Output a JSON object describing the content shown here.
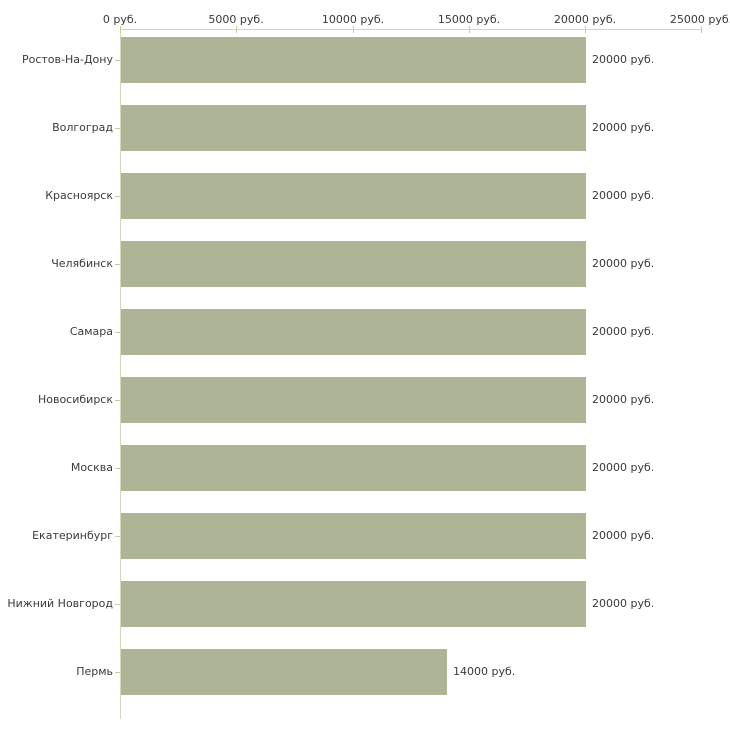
{
  "chart_data": {
    "type": "bar",
    "orientation": "horizontal",
    "title": "",
    "xlabel": "",
    "ylabel": "",
    "unit": "руб.",
    "categories": [
      "Ростов-На-Дону",
      "Волгоград",
      "Красноярск",
      "Челябинск",
      "Самара",
      "Новосибирск",
      "Москва",
      "Екатеринбург",
      "Нижний Новгород",
      "Пермь"
    ],
    "values": [
      20000,
      20000,
      20000,
      20000,
      20000,
      20000,
      20000,
      20000,
      20000,
      14000
    ],
    "value_labels": [
      "20000 руб.",
      "20000 руб.",
      "20000 руб.",
      "20000 руб.",
      "20000 руб.",
      "20000 руб.",
      "20000 руб.",
      "20000 руб.",
      "20000 руб.",
      "14000 руб."
    ],
    "xlim": [
      0,
      25000
    ],
    "x_ticks": [
      {
        "value": 0,
        "label": "0 руб."
      },
      {
        "value": 5000,
        "label": "5000 руб."
      },
      {
        "value": 10000,
        "label": "10000 руб."
      },
      {
        "value": 15000,
        "label": "15000 руб."
      },
      {
        "value": 20000,
        "label": "20000 руб."
      },
      {
        "value": 25000,
        "label": "25000 руб."
      }
    ],
    "grid": false,
    "legend": "none",
    "colors": {
      "bar": "#aeb496",
      "axis": "#d9d5bb",
      "tick": "#cdc7a2",
      "text": "#3a3a3a",
      "background": "#ffffff"
    }
  }
}
